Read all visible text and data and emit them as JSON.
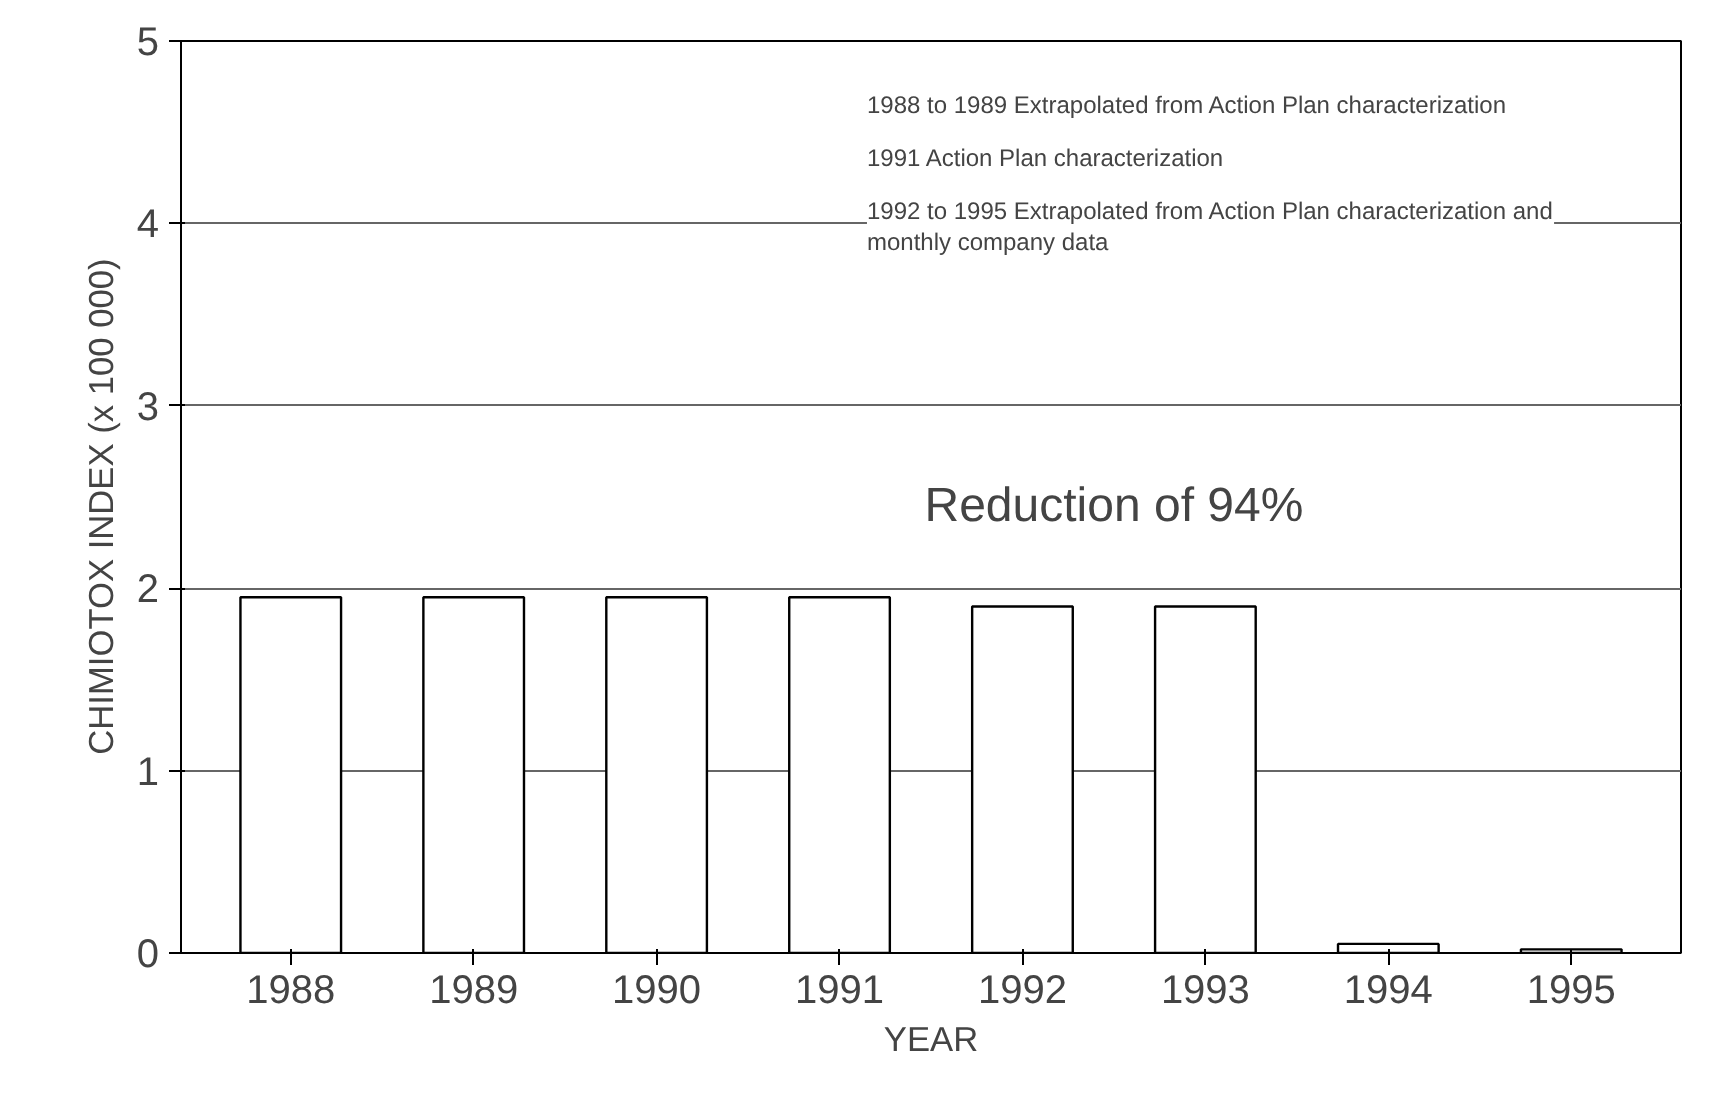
{
  "chart_data": {
    "type": "bar",
    "xlabel": "YEAR",
    "ylabel": "CHIMIOTOX INDEX  (x 100  000)",
    "categories": [
      "1988",
      "1989",
      "1990",
      "1991",
      "1992",
      "1993",
      "1994",
      "1995"
    ],
    "values": [
      1.95,
      1.95,
      1.95,
      1.95,
      1.9,
      1.9,
      0.05,
      0.02
    ],
    "color": "#ffffff",
    "ylim": [
      0,
      5
    ],
    "yticks": [
      0,
      1,
      2,
      3,
      4,
      5
    ],
    "grid": "y",
    "annotations": [
      "1988 to 1989  Extrapolated from Action Plan characterization",
      "1991  Action Plan characterization",
      "1992 to 1995  Extrapolated from Action Plan characterization and monthly company data",
      "Reduction of 94%"
    ]
  }
}
